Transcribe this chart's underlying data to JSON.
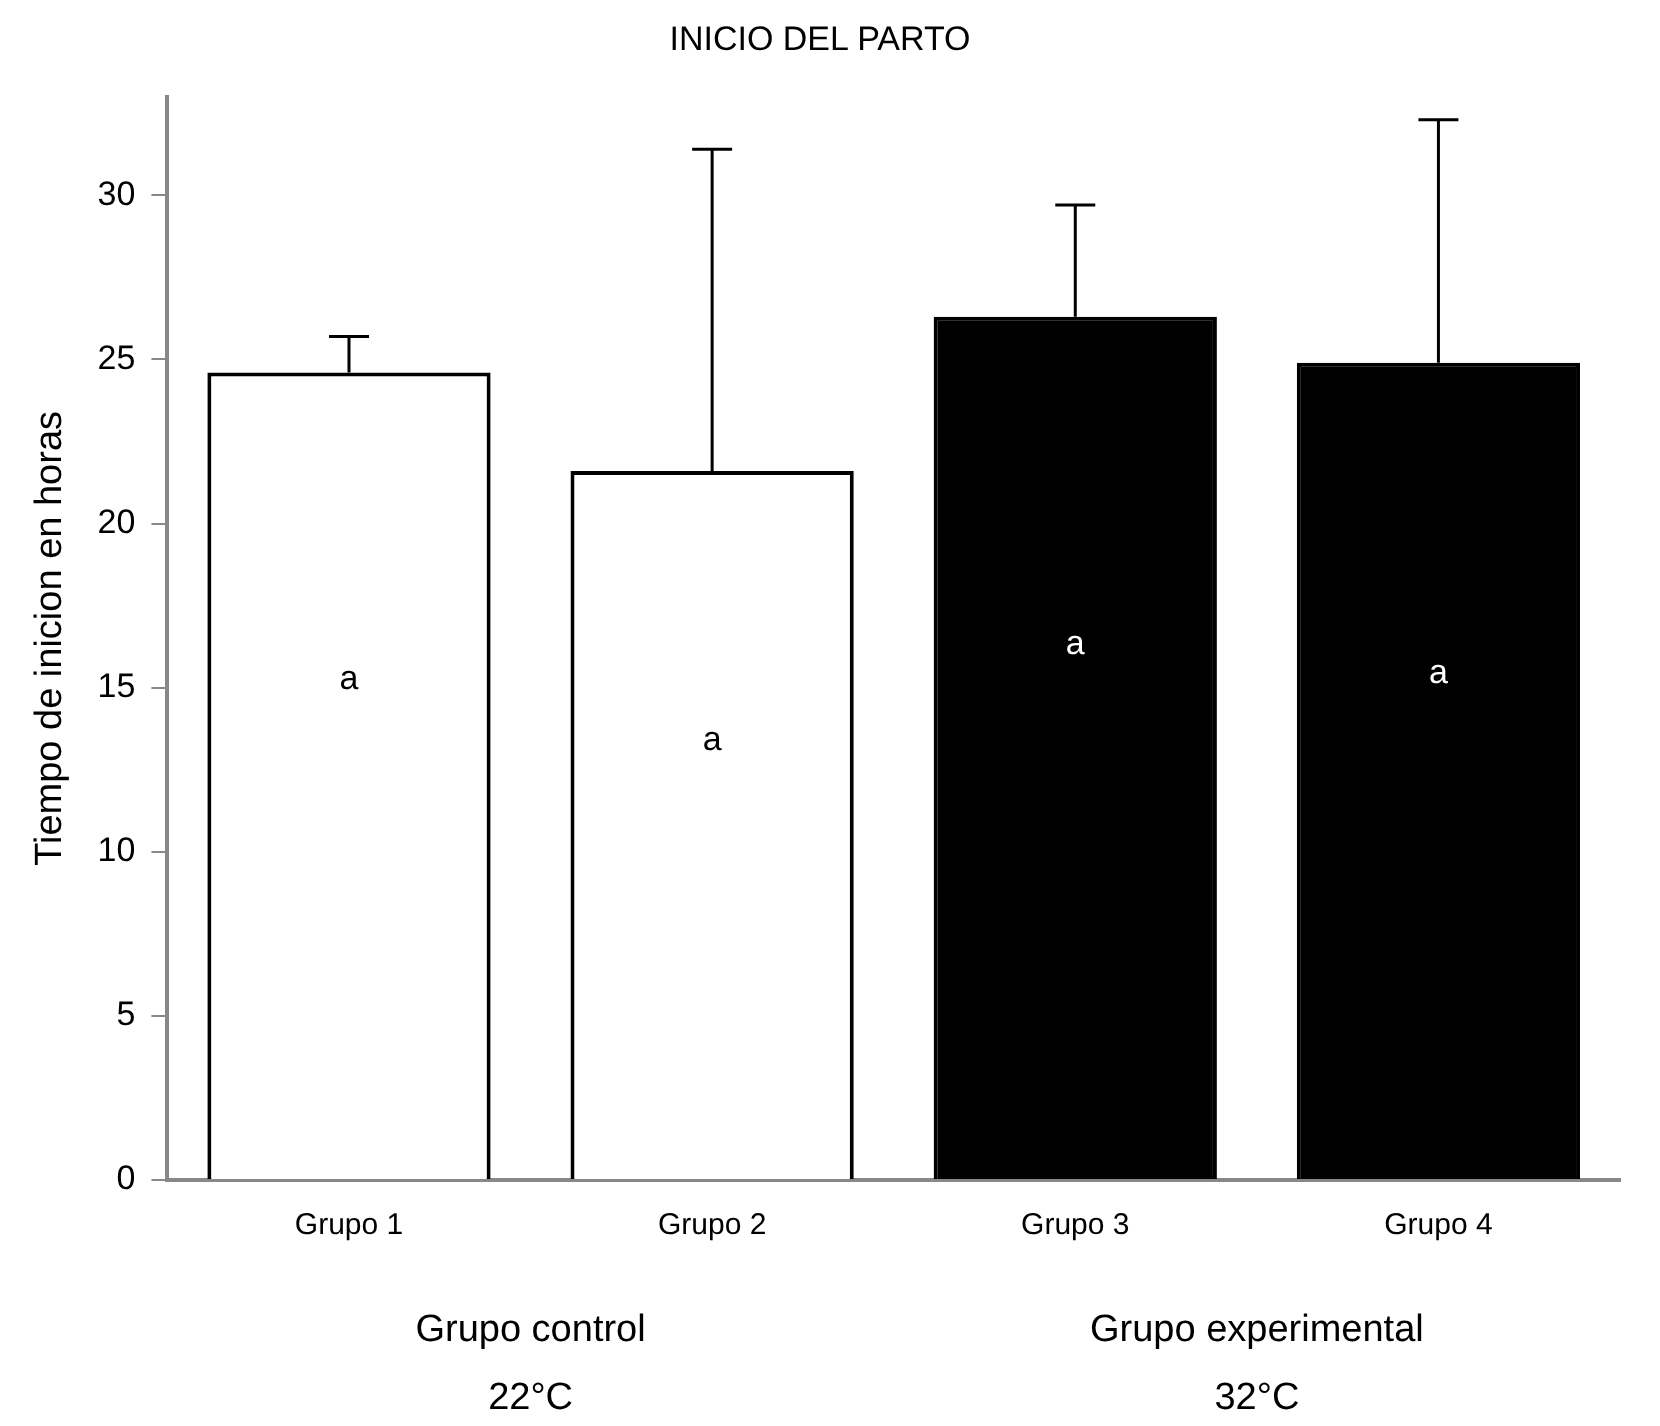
{
  "chart_data": {
    "type": "bar",
    "title": "INICIO DEL PARTO",
    "ylabel": "Tiempo de inicion en horas",
    "categories": [
      "Grupo 1",
      "Grupo 2",
      "Grupo 3",
      "Grupo 4"
    ],
    "values": [
      24.6,
      21.6,
      26.3,
      24.9
    ],
    "colors": [
      "#ffffff",
      "#ffffff",
      "#000000",
      "#000000"
    ],
    "errors": [
      [
        24.6,
        25.7
      ],
      [
        21.6,
        31.4
      ],
      [
        26.3,
        29.7
      ],
      [
        24.9,
        32.3
      ]
    ],
    "value_labels": [
      "a",
      "a",
      "a",
      "a"
    ],
    "annotations": [
      "Grupo control\n22°C",
      "Grupo experimental\n32°C"
    ],
    "ylim": [
      0,
      33
    ],
    "yticks": [
      0,
      5,
      10,
      15,
      20,
      25,
      30
    ],
    "grid": false,
    "legend": false
  }
}
